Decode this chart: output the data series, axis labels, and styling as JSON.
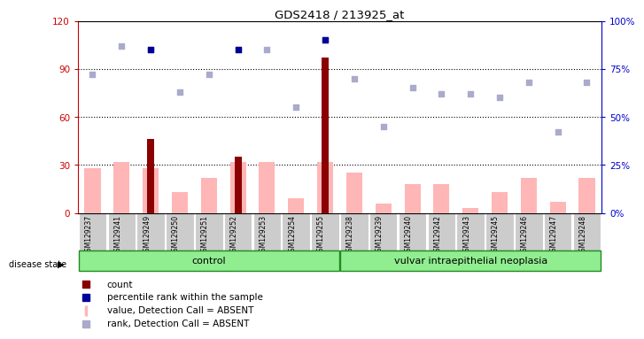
{
  "title": "GDS2418 / 213925_at",
  "samples": [
    "GSM129237",
    "GSM129241",
    "GSM129249",
    "GSM129250",
    "GSM129251",
    "GSM129252",
    "GSM129253",
    "GSM129254",
    "GSM129255",
    "GSM129238",
    "GSM129239",
    "GSM129240",
    "GSM129242",
    "GSM129243",
    "GSM129245",
    "GSM129246",
    "GSM129247",
    "GSM129248"
  ],
  "n_control": 9,
  "n_disease": 9,
  "group_labels": [
    "control",
    "vulvar intraepithelial neoplasia"
  ],
  "bar_values": [
    0,
    0,
    46,
    0,
    0,
    35,
    0,
    0,
    97,
    0,
    0,
    0,
    0,
    0,
    0,
    0,
    0,
    0
  ],
  "pink_values": [
    28,
    32,
    28,
    13,
    22,
    32,
    32,
    9,
    32,
    25,
    6,
    18,
    18,
    3,
    13,
    22,
    7,
    22
  ],
  "blue_sq_values": [
    72,
    87,
    85,
    63,
    72,
    85,
    85,
    55,
    90,
    70,
    45,
    65,
    62,
    62,
    60,
    68,
    42,
    68
  ],
  "dark_blue_idx": [
    2,
    5,
    8
  ],
  "dark_blue_vals": [
    85,
    85,
    90
  ],
  "ylim_left": [
    0,
    120
  ],
  "ylim_right": [
    0,
    100
  ],
  "yticks_left": [
    0,
    30,
    60,
    90,
    120
  ],
  "yticks_right": [
    0,
    25,
    50,
    75,
    100
  ],
  "ytick_labels_left": [
    "0",
    "30",
    "60",
    "90",
    "120"
  ],
  "ytick_labels_right": [
    "0%",
    "25%",
    "50%",
    "75%",
    "100%"
  ],
  "hlines": [
    30,
    60,
    90
  ],
  "left_axis_color": "#cc0000",
  "right_axis_color": "#0000cc",
  "dark_red_color": "#8B0000",
  "pink_bar_color": "#FFB6B6",
  "light_blue_color": "#aaaacc",
  "dark_blue_color": "#000099",
  "group_box_color": "#90EE90",
  "group_box_edge_color": "#228B22",
  "xticklabel_bg_color": "#cccccc",
  "disease_state_label": "disease state"
}
